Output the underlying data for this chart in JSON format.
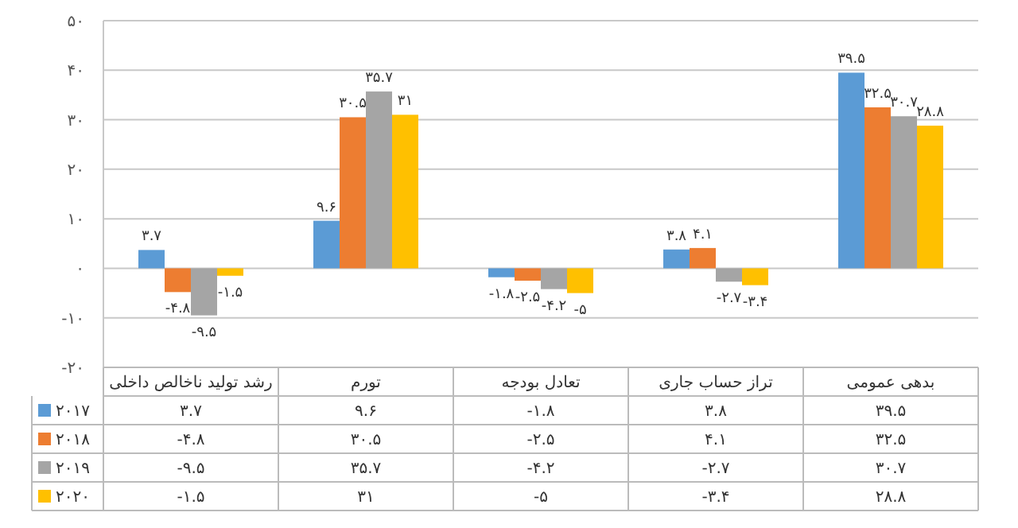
{
  "chart_data": {
    "type": "bar",
    "categories": [
      "رشد تولید ناخالص داخلی",
      "تورم",
      "تعادل بودجه",
      "تراز حساب جاری",
      "بدهی عمومی"
    ],
    "series": [
      {
        "name": "۲۰۱۷",
        "color": "#5b9bd5",
        "values": [
          3.7,
          9.6,
          -1.8,
          3.8,
          39.5
        ],
        "value_labels": [
          "۳.۷",
          "۹.۶",
          "-۱.۸",
          "۳.۸",
          "۳۹.۵"
        ]
      },
      {
        "name": "۲۰۱۸",
        "color": "#ed7d31",
        "values": [
          -4.8,
          30.5,
          -2.5,
          4.1,
          32.5
        ],
        "value_labels": [
          "-۴.۸",
          "۳۰.۵",
          "-۲.۵",
          "۴.۱",
          "۳۲.۵"
        ]
      },
      {
        "name": "۲۰۱۹",
        "color": "#a5a5a5",
        "values": [
          -9.5,
          35.7,
          -4.2,
          -2.7,
          30.7
        ],
        "value_labels": [
          "-۹.۵",
          "۳۵.۷",
          "-۴.۲",
          "-۲.۷",
          "۳۰.۷"
        ]
      },
      {
        "name": "۲۰۲۰",
        "color": "#ffc000",
        "values": [
          -1.5,
          31,
          -5,
          -3.4,
          28.8
        ],
        "value_labels": [
          "-۱.۵",
          "۳۱",
          "-۵",
          "-۳.۴",
          "۲۸.۸"
        ]
      }
    ],
    "ylim": [
      -20,
      50
    ],
    "yticks": [
      {
        "value": -20,
        "label": "-۲۰"
      },
      {
        "value": -10,
        "label": "-۱۰"
      },
      {
        "value": 0,
        "label": "۰"
      },
      {
        "value": 10,
        "label": "۱۰"
      },
      {
        "value": 20,
        "label": "۲۰"
      },
      {
        "value": 30,
        "label": "۳۰"
      },
      {
        "value": 40,
        "label": "۴۰"
      },
      {
        "value": 50,
        "label": "۵۰"
      }
    ],
    "grid": "y",
    "legend": "bottom left"
  }
}
